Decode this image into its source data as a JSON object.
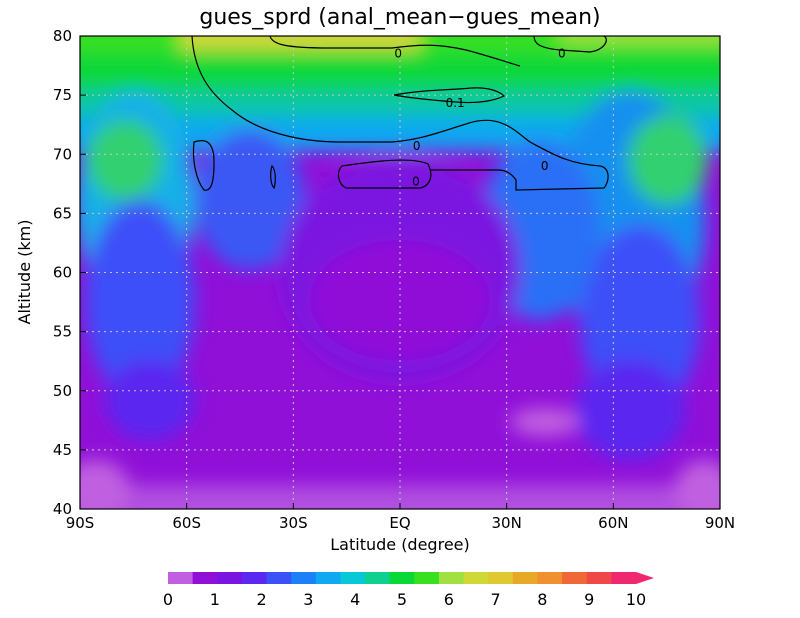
{
  "chart_data": {
    "type": "heatmap",
    "title": "gues_sprd (anal_mean−gues_mean)",
    "xlabel": "Latitude (degree)",
    "ylabel": "Altitude (km)",
    "xlim": [
      -90,
      90
    ],
    "ylim": [
      40,
      80
    ],
    "x_ticks": [
      {
        "value": -90,
        "label": "90S"
      },
      {
        "value": -60,
        "label": "60S"
      },
      {
        "value": -30,
        "label": "30S"
      },
      {
        "value": 0,
        "label": "EQ"
      },
      {
        "value": 30,
        "label": "30N"
      },
      {
        "value": 60,
        "label": "60N"
      },
      {
        "value": 90,
        "label": "90N"
      }
    ],
    "y_ticks": [
      {
        "value": 40,
        "label": "40"
      },
      {
        "value": 45,
        "label": "45"
      },
      {
        "value": 50,
        "label": "50"
      },
      {
        "value": 55,
        "label": "55"
      },
      {
        "value": 60,
        "label": "60"
      },
      {
        "value": 65,
        "label": "65"
      },
      {
        "value": 70,
        "label": "70"
      },
      {
        "value": 75,
        "label": "75"
      },
      {
        "value": 80,
        "label": "80"
      }
    ],
    "grid": true,
    "colorbar": {
      "colors": [
        "#c060e0",
        "#9010d8",
        "#7a14e0",
        "#5a28f0",
        "#3c50f8",
        "#1e80f8",
        "#10a8f0",
        "#08c8d8",
        "#10d090",
        "#08d838",
        "#38e020",
        "#a0e040",
        "#d0d838",
        "#e0c830",
        "#e8a828",
        "#f09030",
        "#f06838",
        "#f04848",
        "#f02870"
      ],
      "labels": [
        "0",
        "1",
        "2",
        "3",
        "4",
        "5",
        "6",
        "7",
        "8",
        "9",
        "10"
      ],
      "extend": "max"
    },
    "contour_labels": [
      {
        "text": "0",
        "lat": -0.5,
        "alt": 78.6
      },
      {
        "text": "0",
        "lat": 45.5,
        "alt": 78.6
      },
      {
        "text": "0.1",
        "lat": 15.5,
        "alt": 74.4
      },
      {
        "text": "0",
        "lat": 4.7,
        "alt": 70.8
      },
      {
        "text": "0",
        "lat": 4.5,
        "alt": 67.8
      },
      {
        "text": "0",
        "lat": 40.7,
        "alt": 69.1
      }
    ]
  }
}
